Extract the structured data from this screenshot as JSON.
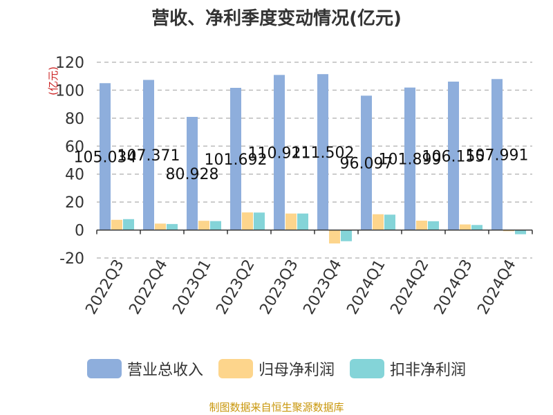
{
  "chart_data": {
    "type": "bar",
    "title": "营收、净利季度变动情况(亿元)",
    "ylabel": "(亿元)",
    "ylim": [
      -20,
      120
    ],
    "yticks": [
      -20,
      0,
      20,
      40,
      60,
      80,
      100,
      120
    ],
    "grid": true,
    "legend_position": "bottom",
    "categories": [
      "2022Q3",
      "2022Q4",
      "2023Q1",
      "2023Q2",
      "2023Q3",
      "2023Q4",
      "2024Q1",
      "2024Q2",
      "2024Q3",
      "2024Q4"
    ],
    "series": [
      {
        "name": "营业总收入",
        "color": "#8eaedc",
        "values": [
          105.034,
          107.371,
          80.928,
          101.692,
          110.921,
          111.502,
          96.097,
          101.899,
          106.155,
          107.991
        ],
        "data_labels": [
          "105.034",
          "107.371",
          "80.928",
          "101.692",
          "110.921",
          "111.502",
          "96.097",
          "101.899",
          "106.155",
          "107.991"
        ]
      },
      {
        "name": "归母净利润",
        "color": "#fdd58c",
        "values": [
          7.3,
          4.6,
          6.6,
          12.6,
          11.8,
          -9.6,
          11.3,
          6.7,
          4.0,
          -0.8
        ]
      },
      {
        "name": "扣非净利润",
        "color": "#84d4d8",
        "values": [
          7.8,
          4.3,
          6.4,
          12.5,
          11.8,
          -8.0,
          11.0,
          6.3,
          3.6,
          -3.0
        ]
      }
    ]
  },
  "source": "制图数据来自恒生聚源数据库"
}
